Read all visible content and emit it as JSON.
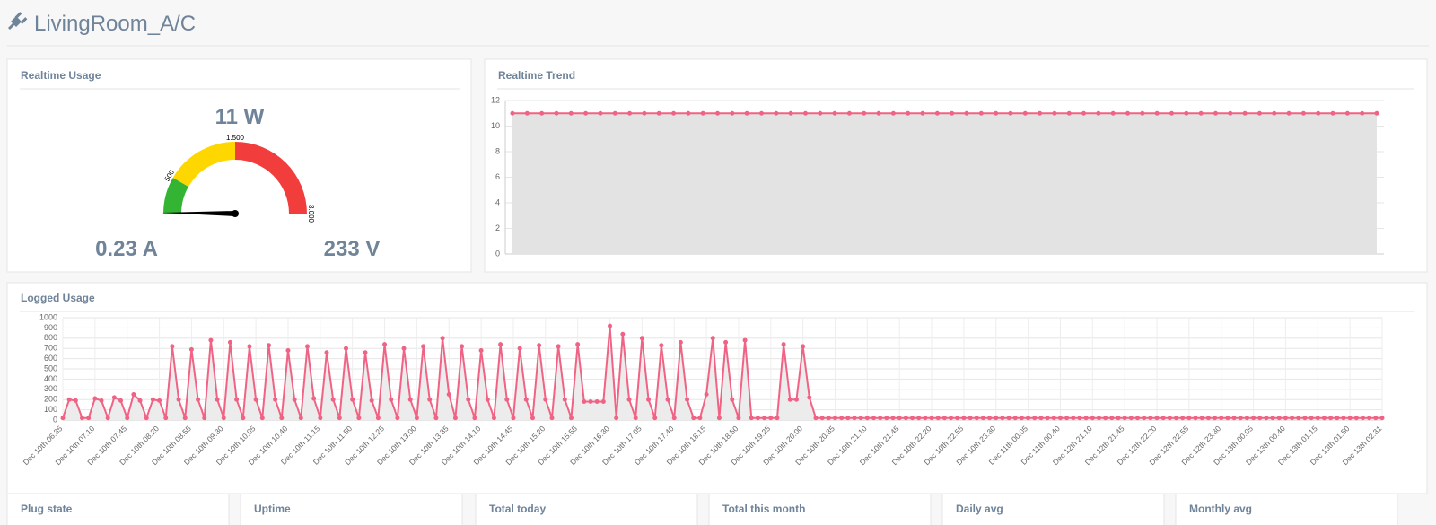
{
  "header": {
    "title": "LivingRoom_A/C"
  },
  "chart_data": [
    {
      "type": "gauge",
      "title": "Realtime Usage",
      "value": 11,
      "value_label": "11 W",
      "range": [
        0,
        3000
      ],
      "ticks": [
        500,
        {
          "value": 1500,
          "label": "1.500"
        },
        {
          "value": 3000,
          "label": "3.000"
        }
      ],
      "band_colors": [
        "#33b533",
        "#ffd700",
        "#f23d3d"
      ],
      "current": "0.23 A",
      "voltage": "233 V"
    },
    {
      "type": "line",
      "title": "Realtime Trend",
      "values": [
        11,
        11,
        11,
        11,
        11,
        11,
        11,
        11,
        11,
        11,
        11,
        11,
        11,
        11,
        11,
        11,
        11,
        11,
        11,
        11,
        11,
        11,
        11,
        11,
        11,
        11,
        11,
        11,
        11,
        11,
        11,
        11,
        11,
        11,
        11,
        11,
        11,
        11,
        11,
        11,
        11,
        11,
        11,
        11,
        11,
        11,
        11,
        11,
        11,
        11,
        11,
        11,
        11,
        11,
        11,
        11,
        11,
        11,
        11,
        11
      ],
      "ylim": [
        0,
        12
      ],
      "yticks": [
        0,
        2,
        4,
        6,
        8,
        10,
        12
      ],
      "color": "#f06384",
      "fill": "#e3e3e3",
      "grid": true
    },
    {
      "type": "line",
      "title": "Logged Usage",
      "categories": [
        "Dec 10th 06:35",
        null,
        null,
        null,
        null,
        "Dec 10th 07:10",
        null,
        null,
        null,
        null,
        "Dec 10th 07:45",
        null,
        null,
        null,
        null,
        "Dec 10th 08:20",
        null,
        null,
        null,
        null,
        "Dec 10th 08:55",
        null,
        null,
        null,
        null,
        "Dec 10th 09:30",
        null,
        null,
        null,
        null,
        "Dec 10th 10:05",
        null,
        null,
        null,
        null,
        "Dec 10th 10:40",
        null,
        null,
        null,
        null,
        "Dec 10th 11:15",
        null,
        null,
        null,
        null,
        "Dec 10th 11:50",
        null,
        null,
        null,
        null,
        "Dec 10th 12:25",
        null,
        null,
        null,
        null,
        "Dec 10th 13:00",
        null,
        null,
        null,
        null,
        "Dec 10th 13:35",
        null,
        null,
        null,
        null,
        "Dec 10th 14:10",
        null,
        null,
        null,
        null,
        "Dec 10th 14:45",
        null,
        null,
        null,
        null,
        "Dec 10th 15:20",
        null,
        null,
        null,
        null,
        "Dec 10th 15:55",
        null,
        null,
        null,
        null,
        "Dec 10th 16:30",
        null,
        null,
        null,
        null,
        "Dec 10th 17:05",
        null,
        null,
        null,
        null,
        "Dec 10th 17:40",
        null,
        null,
        null,
        null,
        "Dec 10th 18:15",
        null,
        null,
        null,
        null,
        "Dec 10th 18:50",
        null,
        null,
        null,
        null,
        "Dec 10th 19:25",
        null,
        null,
        null,
        null,
        "Dec 10th 20:00",
        null,
        null,
        null,
        null,
        "Dec 10th 20:35",
        null,
        null,
        null,
        null,
        "Dec 10th 21:10",
        null,
        null,
        null,
        null,
        "Dec 10th 21:45",
        null,
        null,
        null,
        null,
        "Dec 10th 22:20",
        null,
        null,
        null,
        null,
        "Dec 10th 22:55",
        null,
        null,
        null,
        null,
        "Dec 10th 23:30",
        null,
        null,
        null,
        null,
        "Dec 11th 00:05",
        null,
        null,
        null,
        null,
        "Dec 11th 00:40",
        null,
        null,
        null,
        null,
        "Dec 12th 21:10",
        null,
        null,
        null,
        null,
        "Dec 12th 21:45",
        null,
        null,
        null,
        null,
        "Dec 12th 22:20",
        null,
        null,
        null,
        null,
        "Dec 12th 22:55",
        null,
        null,
        null,
        null,
        "Dec 12th 23:30",
        null,
        null,
        null,
        null,
        "Dec 13th 00:05",
        null,
        null,
        null,
        null,
        "Dec 13th 00:40",
        null,
        null,
        null,
        null,
        "Dec 13th 01:15",
        null,
        null,
        null,
        null,
        "Dec 13th 01:50",
        null,
        null,
        null,
        null,
        "Dec 13th 02:31"
      ],
      "values": [
        20,
        200,
        190,
        20,
        20,
        210,
        190,
        20,
        220,
        190,
        20,
        250,
        190,
        20,
        200,
        190,
        20,
        720,
        200,
        20,
        690,
        200,
        20,
        780,
        200,
        20,
        760,
        200,
        20,
        720,
        200,
        20,
        730,
        200,
        20,
        680,
        200,
        20,
        720,
        210,
        20,
        660,
        200,
        20,
        700,
        200,
        20,
        660,
        190,
        20,
        740,
        200,
        20,
        700,
        200,
        20,
        720,
        200,
        20,
        800,
        250,
        20,
        720,
        200,
        20,
        680,
        200,
        20,
        740,
        200,
        20,
        700,
        200,
        20,
        730,
        200,
        20,
        720,
        200,
        20,
        740,
        180,
        180,
        180,
        180,
        920,
        20,
        840,
        200,
        20,
        800,
        200,
        20,
        730,
        200,
        20,
        760,
        200,
        20,
        20,
        250,
        800,
        20,
        760,
        200,
        20,
        780,
        20,
        20,
        20,
        20,
        20,
        740,
        200,
        200,
        720,
        220,
        20,
        20,
        20,
        20,
        20,
        20,
        20,
        20,
        20,
        20,
        20,
        20,
        20,
        20,
        20,
        20,
        20,
        20,
        20,
        20,
        20,
        20,
        20,
        20,
        20,
        20,
        20,
        20,
        20,
        20,
        20,
        20,
        20,
        20,
        20,
        20,
        20,
        20,
        20,
        20,
        20,
        20,
        20,
        20,
        20,
        20,
        20,
        20,
        20,
        20,
        20,
        20,
        20,
        20,
        20,
        20,
        20,
        20,
        20,
        20,
        20,
        20,
        20,
        20,
        20,
        20,
        20,
        20,
        20,
        20,
        20,
        20,
        20,
        20,
        20,
        20,
        20,
        20,
        20,
        20,
        20,
        20,
        20,
        20,
        20,
        20,
        20,
        20,
        20
      ],
      "ylim": [
        0,
        1000
      ],
      "yticks": [
        0,
        100,
        200,
        300,
        400,
        500,
        600,
        700,
        800,
        900,
        1000
      ],
      "color": "#f06384",
      "fill": "#ececec",
      "grid": true
    }
  ],
  "cards": [
    "Plug state",
    "Uptime",
    "Total today",
    "Total this month",
    "Daily avg",
    "Monthly avg"
  ]
}
